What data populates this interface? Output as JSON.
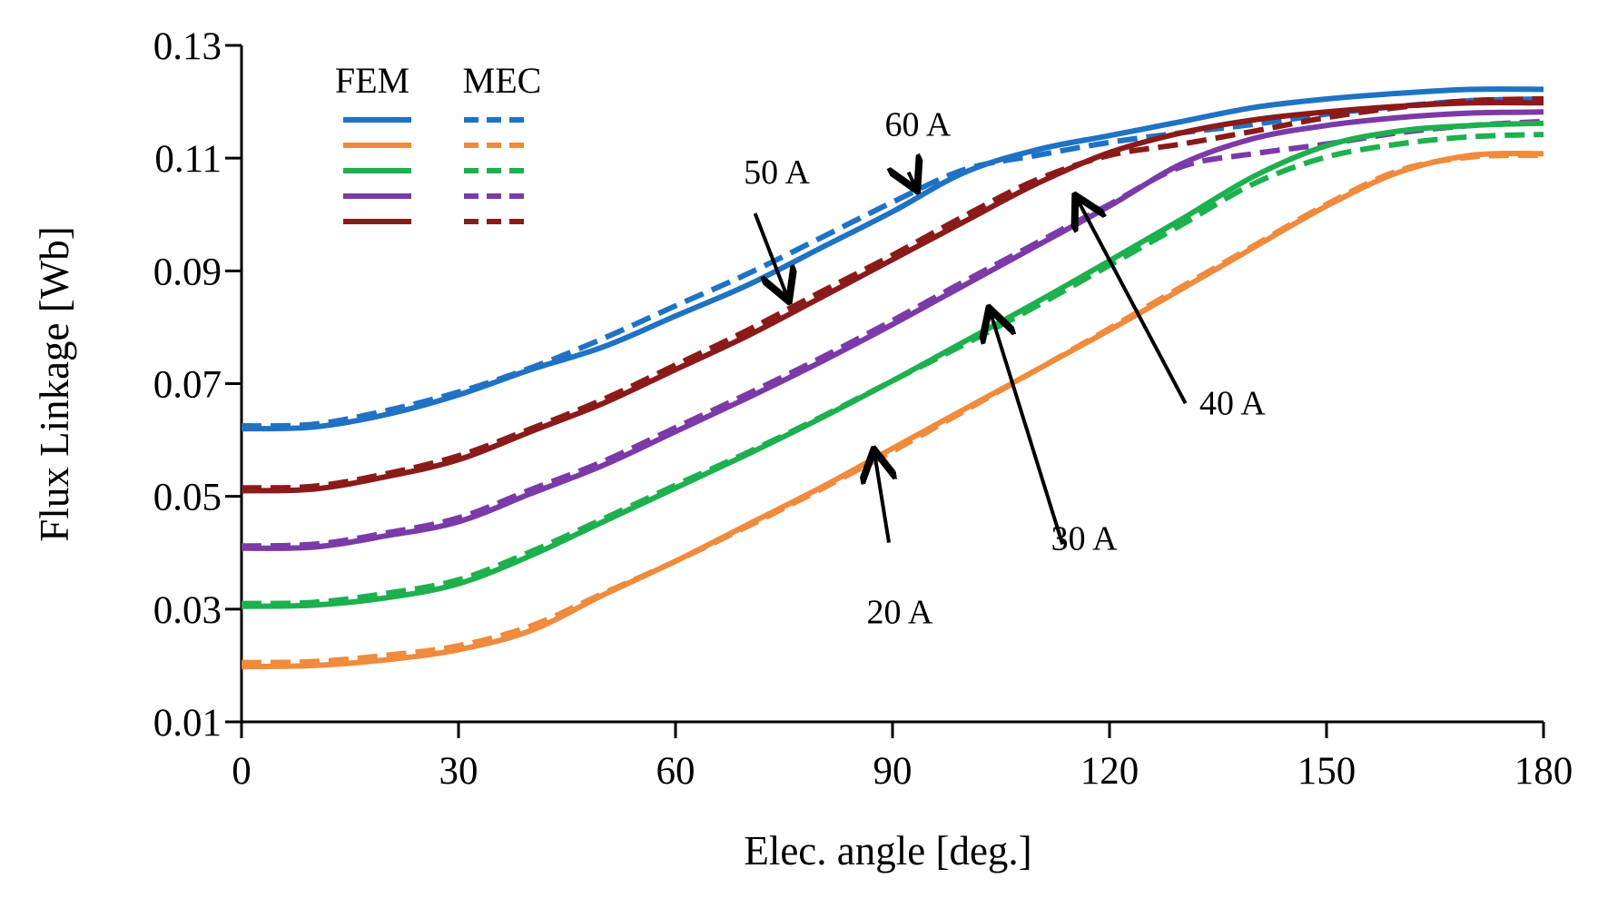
{
  "chart_data": {
    "type": "line",
    "xlabel": "Elec. angle [deg.]",
    "ylabel": "Flux Linkage [Wb]",
    "xlim": [
      0,
      180
    ],
    "ylim": [
      0.01,
      0.13
    ],
    "x_ticks": [
      "0",
      "30",
      "60",
      "90",
      "120",
      "150",
      "180"
    ],
    "y_ticks": [
      "0.01",
      "0.03",
      "0.05",
      "0.07",
      "0.09",
      "0.11",
      "0.13"
    ],
    "grid": false,
    "legend": {
      "placement": "top-left",
      "headers": [
        "FEM",
        "MEC"
      ]
    },
    "x": [
      0,
      10,
      20,
      30,
      40,
      50,
      60,
      70,
      80,
      90,
      100,
      110,
      120,
      130,
      140,
      150,
      160,
      170,
      180
    ],
    "series": [
      {
        "current": "60 A",
        "color": "#1f72c4",
        "method": "FEM",
        "style": "solid",
        "values": [
          0.062,
          0.0623,
          0.0645,
          0.068,
          0.0725,
          0.0765,
          0.082,
          0.0875,
          0.094,
          0.1005,
          0.1075,
          0.1115,
          0.114,
          0.1165,
          0.119,
          0.1205,
          0.1215,
          0.1222,
          0.1222
        ]
      },
      {
        "current": "60 A",
        "color": "#1f72c4",
        "method": "MEC",
        "style": "dashed",
        "values": [
          0.0625,
          0.0628,
          0.0652,
          0.0685,
          0.0728,
          0.078,
          0.0838,
          0.0895,
          0.0958,
          0.1022,
          0.108,
          0.1105,
          0.1128,
          0.1145,
          0.116,
          0.1178,
          0.1192,
          0.1202,
          0.1205
        ]
      },
      {
        "current": "50 A",
        "color": "#8b1a1a",
        "method": "FEM",
        "style": "solid",
        "values": [
          0.051,
          0.0513,
          0.0535,
          0.0565,
          0.0615,
          0.0665,
          0.0725,
          0.0785,
          0.0852,
          0.092,
          0.0988,
          0.1055,
          0.111,
          0.1145,
          0.1168,
          0.1182,
          0.1192,
          0.1198,
          0.1198
        ]
      },
      {
        "current": "50 A",
        "color": "#8b1a1a",
        "method": "MEC",
        "style": "dashed",
        "values": [
          0.0515,
          0.0518,
          0.054,
          0.0572,
          0.062,
          0.0672,
          0.0733,
          0.0795,
          0.0862,
          0.0928,
          0.0998,
          0.1062,
          0.1105,
          0.1125,
          0.1148,
          0.1172,
          0.119,
          0.1202,
          0.1205
        ]
      },
      {
        "current": "40 A",
        "color": "#7b3aa8",
        "method": "FEM",
        "style": "solid",
        "values": [
          0.0408,
          0.041,
          0.043,
          0.0455,
          0.0505,
          0.0555,
          0.0615,
          0.0675,
          0.0738,
          0.0805,
          0.0875,
          0.0945,
          0.1015,
          0.109,
          0.1135,
          0.1158,
          0.1172,
          0.118,
          0.1182
        ]
      },
      {
        "current": "40 A",
        "color": "#7b3aa8",
        "method": "MEC",
        "style": "dashed",
        "values": [
          0.0412,
          0.0415,
          0.0435,
          0.0462,
          0.0512,
          0.0562,
          0.0622,
          0.0682,
          0.0745,
          0.0812,
          0.0882,
          0.095,
          0.1018,
          0.1085,
          0.1108,
          0.1125,
          0.1145,
          0.1158,
          0.1165
        ]
      },
      {
        "current": "30 A",
        "color": "#1db04e",
        "method": "FEM",
        "style": "solid",
        "values": [
          0.0305,
          0.0307,
          0.032,
          0.0345,
          0.0395,
          0.0455,
          0.0515,
          0.0575,
          0.0638,
          0.0705,
          0.0775,
          0.0845,
          0.0918,
          0.0992,
          0.1068,
          0.1122,
          0.1148,
          0.1158,
          0.1162
        ]
      },
      {
        "current": "30 A",
        "color": "#1db04e",
        "method": "MEC",
        "style": "dashed",
        "values": [
          0.031,
          0.0312,
          0.0328,
          0.0352,
          0.0402,
          0.046,
          0.052,
          0.0578,
          0.064,
          0.0705,
          0.077,
          0.0838,
          0.091,
          0.0982,
          0.1055,
          0.1102,
          0.1125,
          0.1138,
          0.1142
        ]
      },
      {
        "current": "20 A",
        "color": "#f08a3c",
        "method": "FEM",
        "style": "solid",
        "values": [
          0.0198,
          0.02,
          0.021,
          0.0228,
          0.0262,
          0.0325,
          0.0385,
          0.045,
          0.0515,
          0.0585,
          0.0655,
          0.0725,
          0.0795,
          0.0868,
          0.0942,
          0.1015,
          0.1075,
          0.1105,
          0.1108
        ]
      },
      {
        "current": "20 A",
        "color": "#f08a3c",
        "method": "MEC",
        "style": "dashed",
        "values": [
          0.0205,
          0.0207,
          0.0218,
          0.0235,
          0.027,
          0.0328,
          0.0385,
          0.0447,
          0.0512,
          0.058,
          0.0652,
          0.0725,
          0.0798,
          0.0872,
          0.0945,
          0.1018,
          0.1078,
          0.1102,
          0.1105
        ]
      }
    ],
    "annotations": [
      {
        "text": "60 A",
        "label_at": [
          93.5,
          0.114
        ],
        "arrow_from": [
          92.2,
          0.1075
        ],
        "arrow_to": [
          93.2,
          0.1048
        ]
      },
      {
        "text": "50 A",
        "label_at": [
          74,
          0.1055
        ],
        "arrow_from": [
          71,
          0.1002
        ],
        "arrow_to": [
          75.5,
          0.0852
        ]
      },
      {
        "text": "40 A",
        "label_at": [
          137,
          0.0645
        ],
        "arrow_from": [
          130.5,
          0.0665
        ],
        "arrow_to": [
          115.5,
          0.1028
        ]
      },
      {
        "text": "30 A",
        "label_at": [
          116.5,
          0.0405
        ],
        "arrow_from": [
          113.5,
          0.0415
        ],
        "arrow_to": [
          103.5,
          0.0828
        ]
      },
      {
        "text": "20 A",
        "label_at": [
          91,
          0.0275
        ],
        "arrow_from": [
          89.5,
          0.0418
        ],
        "arrow_to": [
          87.5,
          0.0577
        ]
      }
    ]
  }
}
